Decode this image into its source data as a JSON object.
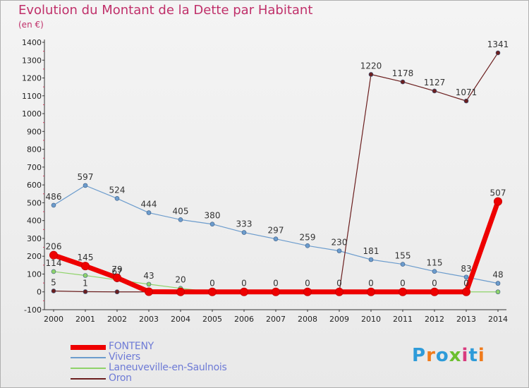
{
  "header": {
    "title": "Evolution du Montant de la Dette par Habitant",
    "unit": "(en €)"
  },
  "colors": {
    "title": "#c0306a",
    "legend_text": "#6e7bd6",
    "FONTENY": "#ee0000",
    "Viviers": "#6c9ccd",
    "Laneuveville-en-Saulnois": "#8fd36a",
    "Oron": "#6b1e1e"
  },
  "logo": {
    "text": "Proxiti",
    "letter_colors": [
      "#2e9bd9",
      "#f07b1c",
      "#2e9bd9",
      "#6cbf2f",
      "#d93b7e",
      "#2e9bd9",
      "#f07b1c"
    ]
  },
  "chart_data": {
    "type": "line",
    "title": "Evolution du Montant de la Dette par Habitant",
    "ylabel": "(en €)",
    "xlabel": "",
    "x": [
      "2000",
      "2001",
      "2002",
      "2003",
      "2004",
      "2005",
      "2006",
      "2007",
      "2008",
      "2009",
      "2010",
      "2011",
      "2012",
      "2013",
      "2014"
    ],
    "ylim": [
      -100,
      1400
    ],
    "yticks": [
      -100,
      0,
      100,
      200,
      300,
      400,
      500,
      600,
      700,
      800,
      900,
      1000,
      1100,
      1200,
      1300,
      1400
    ],
    "grid": false,
    "legend": "bottom-left",
    "series": [
      {
        "name": "FONTENY",
        "values": [
          206,
          145,
          79,
          1,
          0,
          0,
          0,
          0,
          0,
          0,
          0,
          0,
          0,
          0,
          507
        ],
        "labels": [
          "206",
          "145",
          "79",
          "",
          "",
          "",
          "",
          "",
          "",
          "",
          "",
          "",
          "",
          "",
          "507"
        ]
      },
      {
        "name": "Viviers",
        "values": [
          486,
          597,
          524,
          444,
          405,
          380,
          333,
          297,
          259,
          230,
          181,
          155,
          115,
          83,
          48
        ],
        "labels": [
          "486",
          "597",
          "524",
          "444",
          "405",
          "380",
          "333",
          "297",
          "259",
          "230",
          "181",
          "155",
          "115",
          "83",
          "48"
        ]
      },
      {
        "name": "Laneuveville-en-Saulnois",
        "values": [
          114,
          92,
          67,
          43,
          20,
          0,
          0,
          0,
          0,
          0,
          0,
          0,
          0,
          0,
          0
        ],
        "labels": [
          "114",
          "",
          "67",
          "43",
          "20",
          "0",
          "0",
          "0",
          "0",
          "0",
          "0",
          "0",
          "0",
          "0",
          ""
        ]
      },
      {
        "name": "Oron",
        "values": [
          5,
          1,
          0,
          0,
          0,
          0,
          0,
          0,
          0,
          0,
          1220,
          1178,
          1127,
          1071,
          1341
        ],
        "labels": [
          "5",
          "1",
          "",
          "",
          "",
          "",
          "",
          "",
          "",
          "",
          "1220",
          "1178",
          "1127",
          "1071",
          "1341"
        ]
      }
    ]
  }
}
